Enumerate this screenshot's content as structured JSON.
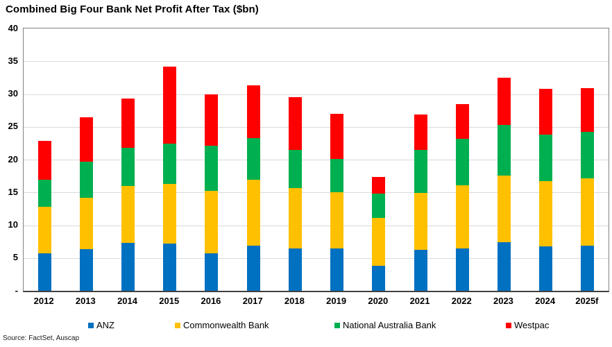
{
  "title": "Combined Big Four Bank Net Profit After Tax ($bn)",
  "source_note": "Source: FactSet, Auscap",
  "colors": {
    "anz": "#0070C0",
    "commonwealth_bank": "#FFC000",
    "national_australia_bank": "#00B050",
    "westpac": "#FF0000",
    "gridline": "#D9D9D9",
    "plot_border": "#808080",
    "axis_line": "#404040"
  },
  "y_axis": {
    "min": 0,
    "max": 40,
    "interval": 5,
    "tick_labels": [
      "40",
      "35",
      "30",
      "25",
      "20",
      "15",
      "10",
      "5",
      "-"
    ]
  },
  "chart_data": {
    "type": "bar",
    "stacked": true,
    "title": "Combined Big Four Bank Net Profit After Tax ($bn)",
    "xlabel": "",
    "ylabel": "",
    "ylim": [
      0,
      40
    ],
    "ytick_interval": 5,
    "grid": true,
    "legend_position": "bottom",
    "categories": [
      "2012",
      "2013",
      "2014",
      "2015",
      "2016",
      "2017",
      "2018",
      "2019",
      "2020",
      "2021",
      "2022",
      "2023",
      "2024",
      "2025f"
    ],
    "series": [
      {
        "name": "ANZ",
        "color": "#0070C0",
        "values": [
          5.7,
          6.4,
          7.3,
          7.2,
          5.7,
          6.9,
          6.5,
          6.5,
          3.8,
          6.2,
          6.5,
          7.4,
          6.8,
          6.9
        ]
      },
      {
        "name": "Commonwealth Bank",
        "color": "#FFC000",
        "values": [
          7.1,
          7.8,
          8.7,
          9.1,
          9.5,
          10.0,
          9.2,
          8.5,
          7.3,
          8.7,
          9.6,
          10.2,
          9.9,
          10.2
        ]
      },
      {
        "name": "National Australia Bank",
        "color": "#00B050",
        "values": [
          4.1,
          5.5,
          5.8,
          6.1,
          6.9,
          6.4,
          5.8,
          5.1,
          3.7,
          6.6,
          7.1,
          7.7,
          7.1,
          7.1
        ]
      },
      {
        "name": "Westpac",
        "color": "#FF0000",
        "values": [
          6.0,
          6.8,
          7.5,
          11.8,
          7.8,
          8.0,
          8.0,
          6.9,
          2.6,
          5.4,
          5.3,
          7.2,
          7.0,
          6.7
        ]
      }
    ],
    "totals": [
      22.9,
      26.5,
      29.3,
      34.2,
      29.9,
      31.3,
      29.5,
      27.0,
      17.4,
      26.9,
      28.5,
      32.5,
      30.8,
      30.9
    ]
  }
}
